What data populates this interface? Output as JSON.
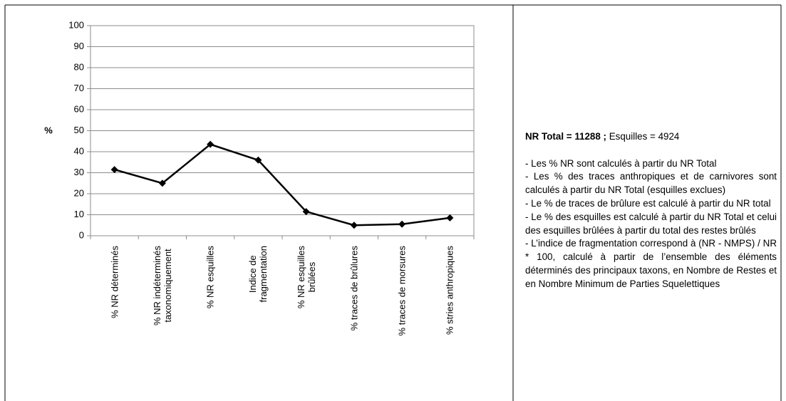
{
  "chart_data": {
    "type": "line",
    "ylabel": "%",
    "categories": [
      "% NR déterminés",
      "% NR indéterminés\ntaxonomiquement",
      "% NR esquilles",
      "Indice de\nfragmentation",
      "% NR esquilles\nbrûlées",
      "% traces de brûlures",
      "% traces de morsures",
      "% stries anthropiques"
    ],
    "values": [
      31.5,
      25,
      43.5,
      36,
      11.5,
      5,
      5.5,
      8.5
    ],
    "color": "#000000",
    "ylim": [
      0,
      100
    ],
    "yticks": [
      0,
      10,
      20,
      30,
      40,
      50,
      60,
      70,
      80,
      90,
      100
    ],
    "grid": true
  },
  "notes": {
    "heading_bold": "NR Total = 11288 ;",
    "heading_rest": "Esquilles = 4924",
    "items": [
      "- Les % NR sont calculés à partir du NR Total",
      "- Les % des traces anthropiques et de carnivores sont calculés à partir du NR Total (esquilles exclues)",
      "- Le % de traces de brûlure est calculé à partir du NR total",
      "- Le % des esquilles est calculé à partir du NR Total et celui des esquilles brûlées à partir du total des restes brûlés",
      "- L’indice de fragmentation correspond à (NR - NMPS) / NR * 100, calculé à partir de l’ensemble des éléments déterminés des principaux taxons, en Nombre de Restes et en Nombre Minimum de Parties Squelettiques"
    ]
  }
}
